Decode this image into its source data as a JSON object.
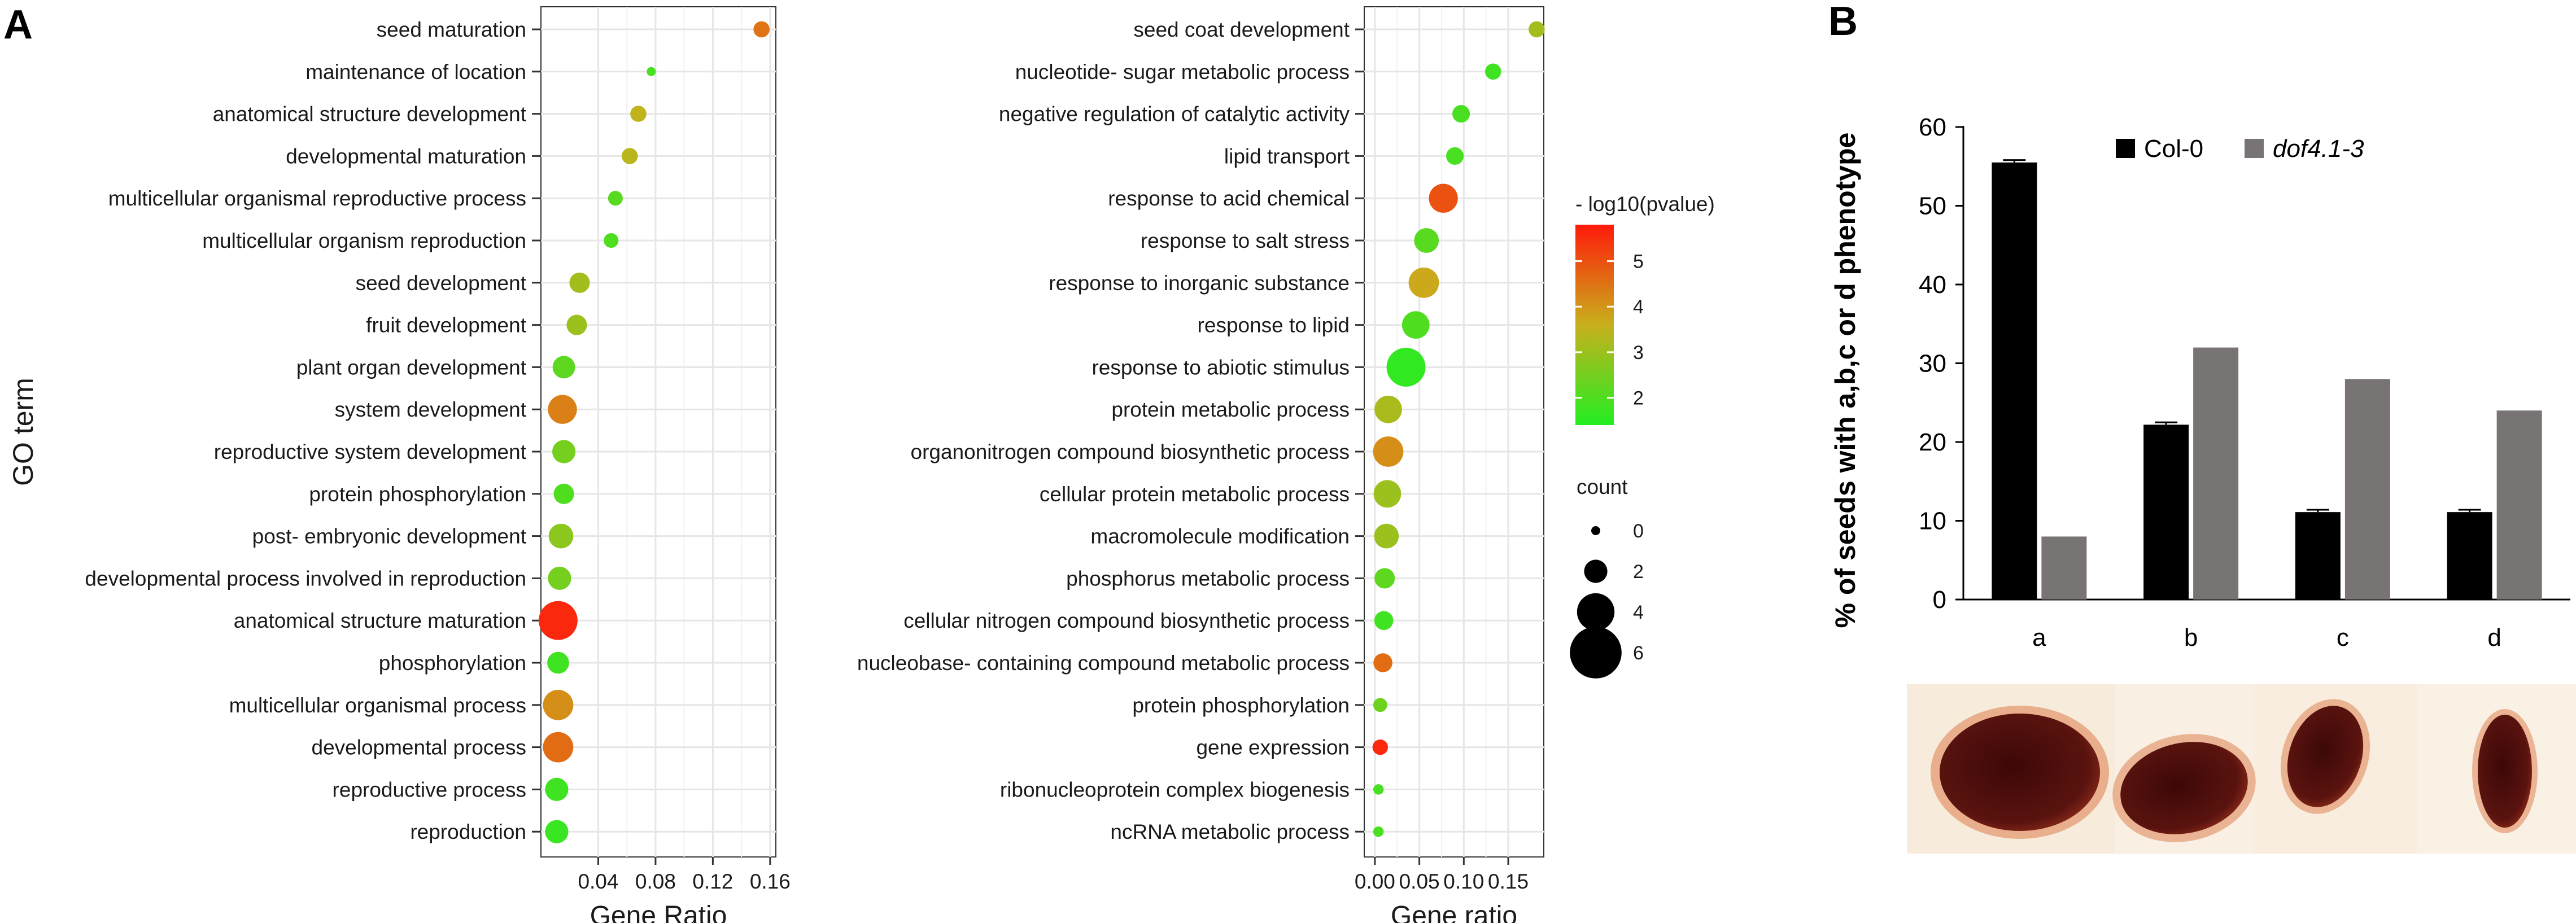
{
  "figure": {
    "panel_a_label": "A",
    "panel_b_label": "B"
  },
  "colors": {
    "low": "#22ee22",
    "mid": "#c8b01c",
    "high": "#ff1a0a",
    "col0": "#000000",
    "dof": "#787474",
    "grid": "#e6e6e6",
    "seed_bg": "#f7ecdc",
    "seed_body": "#4a0e0c",
    "seed_rim": "#d87a55"
  },
  "chart_data": [
    {
      "id": "go_left",
      "type": "scatter",
      "subtype": "bubble",
      "title": "",
      "xlabel": "Gene Ratio",
      "ylabel": "GO term",
      "xlim": [
        0.0,
        0.164
      ],
      "xticks": [
        0.04,
        0.08,
        0.12,
        0.16
      ],
      "xtick_labels": [
        "0.04",
        "0.08",
        "0.12",
        "0.16"
      ],
      "grid": true,
      "points": [
        {
          "term": "seed maturation",
          "ratio": 0.154,
          "count": 1,
          "logp": 4.5
        },
        {
          "term": "maintenance of location",
          "ratio": 0.077,
          "count": 0,
          "logp": 1.9
        },
        {
          "term": "anatomical structure development",
          "ratio": 0.068,
          "count": 1,
          "logp": 3.5
        },
        {
          "term": "developmental maturation",
          "ratio": 0.062,
          "count": 1,
          "logp": 3.4
        },
        {
          "term": "multicellular organismal reproductive process",
          "ratio": 0.052,
          "count": 0.8,
          "logp": 2.1
        },
        {
          "term": "multicellular organism reproduction",
          "ratio": 0.049,
          "count": 0.8,
          "logp": 2.0
        },
        {
          "term": "seed development",
          "ratio": 0.027,
          "count": 1.6,
          "logp": 3.1
        },
        {
          "term": "fruit development",
          "ratio": 0.025,
          "count": 1.6,
          "logp": 3.0
        },
        {
          "term": "plant organ development",
          "ratio": 0.016,
          "count": 1.9,
          "logp": 2.2
        },
        {
          "term": "system development",
          "ratio": 0.015,
          "count": 2.8,
          "logp": 4.3
        },
        {
          "term": "reproductive system development",
          "ratio": 0.016,
          "count": 2.0,
          "logp": 2.5
        },
        {
          "term": "protein phosphorylation",
          "ratio": 0.016,
          "count": 1.6,
          "logp": 2.0
        },
        {
          "term": "post- embryonic development",
          "ratio": 0.014,
          "count": 2.2,
          "logp": 2.8
        },
        {
          "term": "developmental process involved in reproduction",
          "ratio": 0.013,
          "count": 2.0,
          "logp": 2.5
        },
        {
          "term": "anatomical structure maturation",
          "ratio": 0.012,
          "count": 4.2,
          "logp": 5.6
        },
        {
          "term": "phosphorylation",
          "ratio": 0.012,
          "count": 1.8,
          "logp": 1.8
        },
        {
          "term": "multicellular organismal process",
          "ratio": 0.012,
          "count": 3.0,
          "logp": 4.1
        },
        {
          "term": "developmental process",
          "ratio": 0.012,
          "count": 3.0,
          "logp": 4.6
        },
        {
          "term": "reproductive process",
          "ratio": 0.011,
          "count": 2.0,
          "logp": 1.8
        },
        {
          "term": "reproduction",
          "ratio": 0.011,
          "count": 2.0,
          "logp": 1.7
        }
      ]
    },
    {
      "id": "go_right",
      "type": "scatter",
      "subtype": "bubble",
      "title": "",
      "xlabel": "Gene ratio",
      "ylabel": "",
      "xlim": [
        -0.012,
        0.19
      ],
      "xticks": [
        0.0,
        0.05,
        0.1,
        0.15
      ],
      "xtick_labels": [
        "0.00",
        "0.05",
        "0.10",
        "0.15"
      ],
      "grid": true,
      "points": [
        {
          "term": "seed coat development",
          "ratio": 0.182,
          "count": 1,
          "logp": 3.1
        },
        {
          "term": "nucleotide- sugar metabolic process",
          "ratio": 0.133,
          "count": 1,
          "logp": 1.8
        },
        {
          "term": "negative regulation of catalytic activity",
          "ratio": 0.097,
          "count": 1.2,
          "logp": 1.9
        },
        {
          "term": "lipid transport",
          "ratio": 0.09,
          "count": 1.2,
          "logp": 1.9
        },
        {
          "term": "response to acid chemical",
          "ratio": 0.077,
          "count": 2.8,
          "logp": 5.0
        },
        {
          "term": "response to salt stress",
          "ratio": 0.058,
          "count": 2.2,
          "logp": 2.1
        },
        {
          "term": "response to inorganic substance",
          "ratio": 0.055,
          "count": 3.0,
          "logp": 3.7
        },
        {
          "term": "response to lipid",
          "ratio": 0.046,
          "count": 2.6,
          "logp": 2.0
        },
        {
          "term": "response to abiotic stimulus",
          "ratio": 0.035,
          "count": 4.2,
          "logp": 1.6
        },
        {
          "term": "protein metabolic process",
          "ratio": 0.015,
          "count": 2.6,
          "logp": 3.2
        },
        {
          "term": "organonitrogen compound biosynthetic process",
          "ratio": 0.015,
          "count": 3.0,
          "logp": 4.1
        },
        {
          "term": "cellular protein metabolic process",
          "ratio": 0.014,
          "count": 2.6,
          "logp": 3.0
        },
        {
          "term": "macromolecule modification",
          "ratio": 0.013,
          "count": 2.2,
          "logp": 3.0
        },
        {
          "term": "phosphorus metabolic process",
          "ratio": 0.011,
          "count": 1.6,
          "logp": 2.2
        },
        {
          "term": "cellular nitrogen compound biosynthetic process",
          "ratio": 0.01,
          "count": 1.4,
          "logp": 1.8
        },
        {
          "term": "nucleobase- containing compound metabolic process",
          "ratio": 0.009,
          "count": 1.4,
          "logp": 4.6
        },
        {
          "term": "protein phosphorylation",
          "ratio": 0.006,
          "count": 0.7,
          "logp": 2.4
        },
        {
          "term": "gene expression",
          "ratio": 0.006,
          "count": 0.9,
          "logp": 5.6
        },
        {
          "term": "ribonucleoprotein complex biogenesis",
          "ratio": 0.004,
          "count": 0.2,
          "logp": 1.9
        },
        {
          "term": "ncRNA metabolic process",
          "ratio": 0.004,
          "count": 0.2,
          "logp": 1.9
        }
      ]
    },
    {
      "id": "go_legend",
      "type": "legend",
      "color_title": "- log10(pvalue)",
      "color_range": [
        1.4,
        5.8
      ],
      "color_ticks": [
        2,
        3,
        4,
        5
      ],
      "color_tick_labels": [
        "2",
        "3",
        "4",
        "5"
      ],
      "size_title": "count",
      "size_values": [
        0,
        2,
        4,
        6
      ],
      "size_labels": [
        "0",
        "2",
        "4",
        "6"
      ]
    },
    {
      "id": "phenotype_bar",
      "type": "bar",
      "title": "",
      "xlabel": "",
      "ylabel": "% of seeds with a,b,c or d phenotype",
      "ylim": [
        0,
        60
      ],
      "yticks": [
        0,
        10,
        20,
        30,
        40,
        50,
        60
      ],
      "ytick_labels": [
        "0",
        "10",
        "20",
        "30",
        "40",
        "50",
        "60"
      ],
      "categories": [
        "a",
        "b",
        "c",
        "d"
      ],
      "series": [
        {
          "name": "Col-0",
          "values": [
            55.5,
            22.2,
            11.1,
            11.1
          ],
          "error": [
            0.3,
            0.3,
            0.3,
            0.3
          ]
        },
        {
          "name": "dof4.1-3",
          "values": [
            8,
            32,
            28,
            24
          ]
        }
      ],
      "legend_position": "top-right",
      "grid": false
    }
  ]
}
